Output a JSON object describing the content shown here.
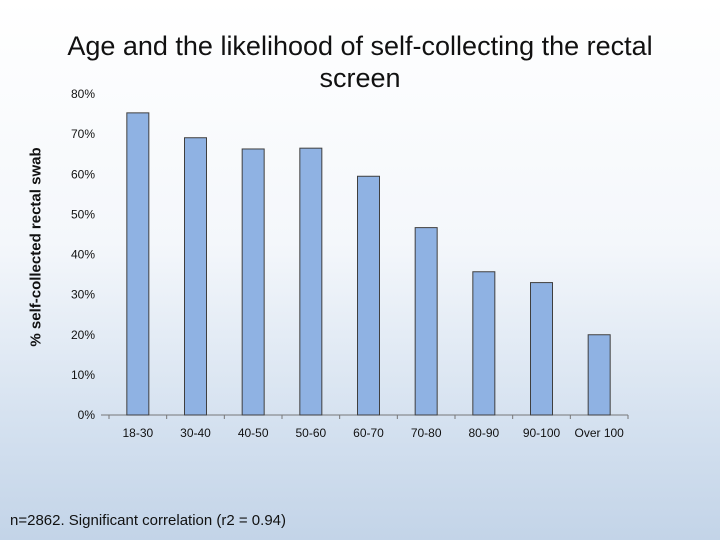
{
  "chart_data": {
    "type": "bar",
    "title": "Age and the likelihood of self-collecting the rectal screen",
    "xlabel": "",
    "ylabel": "% self-collected rectal swab",
    "ylim": [
      0,
      80
    ],
    "yticks": [
      "0%",
      "10%",
      "20%",
      "30%",
      "40%",
      "50%",
      "60%",
      "70%",
      "80%"
    ],
    "categories": [
      "18-30",
      "30-40",
      "40-50",
      "50-60",
      "60-70",
      "70-80",
      "80-90",
      "90-100",
      "Over 100"
    ],
    "values": [
      75.3,
      69.1,
      66.3,
      66.5,
      59.5,
      46.7,
      35.7,
      33.0,
      20.0
    ],
    "grid": false,
    "legend": "none",
    "bar_color": "#8fb2e3",
    "bar_outline": "#3f3f3f"
  },
  "footnote": "n=2862. Significant correlation (r2 = 0.94)"
}
